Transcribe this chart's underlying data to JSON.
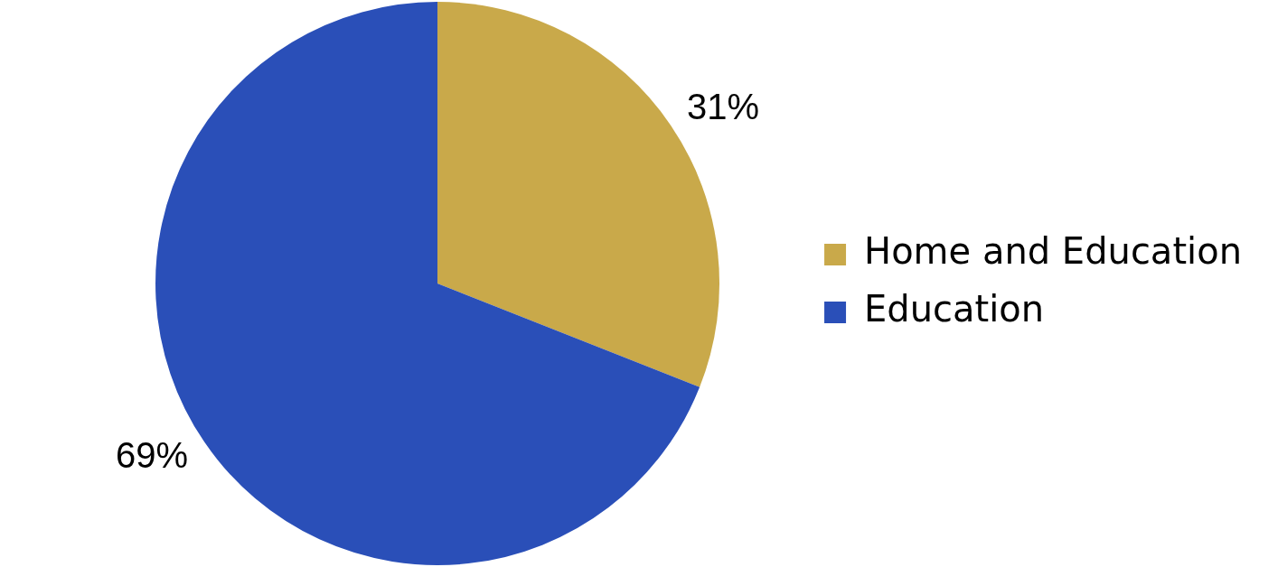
{
  "chart_data": {
    "type": "pie",
    "categories": [
      "Home and Education",
      "Education"
    ],
    "values": [
      31,
      69
    ],
    "colors": [
      "#c9a94a",
      "#2a4fb8"
    ],
    "value_labels": [
      "31%",
      "69%"
    ],
    "legend": "right"
  }
}
